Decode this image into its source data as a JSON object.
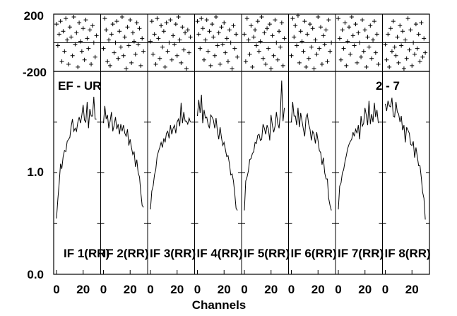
{
  "chart_data": {
    "type": "line",
    "xlabel": "Channels",
    "baseline_label": "EF - UR",
    "scan_label": "2 - 7",
    "phase_panel": {
      "type": "scatter",
      "y_tick_labels": [
        "200",
        "-200"
      ],
      "ylim": [
        -200,
        200
      ]
    },
    "amplitude_panel": {
      "type": "line",
      "y_tick_labels": [
        "0.0",
        "1.0"
      ],
      "ylim": [
        0.0,
        2.0
      ]
    },
    "x_tick_labels": [
      "0",
      "20"
    ],
    "xlim": [
      0,
      31
    ],
    "subbands": [
      {
        "label": "IF 1(RR)",
        "amplitudes": [
          0.55,
          0.74,
          0.9,
          1.09,
          1.04,
          1.16,
          1.22,
          1.21,
          1.31,
          1.33,
          1.35,
          1.46,
          1.53,
          1.41,
          1.44,
          1.41,
          1.5,
          1.55,
          1.49,
          1.57,
          1.67,
          1.52,
          1.5,
          1.7,
          1.44,
          1.63,
          1.56,
          1.56,
          1.75,
          1.53,
          1.53
        ],
        "phases": [
          130,
          -20,
          60,
          150,
          -130,
          80,
          -60,
          170,
          20,
          -150,
          110,
          40,
          -90,
          180,
          -10,
          70,
          -170,
          140,
          10,
          -60,
          100,
          -120,
          160,
          30,
          -40,
          90,
          -150,
          120,
          0,
          -100,
          50
        ]
      },
      {
        "label": "IF 2(RR)",
        "amplitudes": [
          1.49,
          1.66,
          1.53,
          1.57,
          1.44,
          1.51,
          1.6,
          1.41,
          1.47,
          1.55,
          1.43,
          1.48,
          1.38,
          1.48,
          1.41,
          1.47,
          1.39,
          1.36,
          1.43,
          1.27,
          1.33,
          1.25,
          1.18,
          1.21,
          1.06,
          1.13,
          1.0,
          0.96,
          0.81,
          0.68,
          0.66
        ],
        "phases": [
          -40,
          170,
          90,
          -130,
          20,
          -160,
          60,
          130,
          -70,
          0,
          150,
          -110,
          80,
          -30,
          180,
          -90,
          40,
          -180,
          110,
          -20,
          160,
          -140,
          70,
          10,
          -80,
          140,
          -10,
          100,
          -160,
          30,
          -60
        ]
      },
      {
        "label": "IF 3(RR)",
        "amplitudes": [
          0.64,
          0.82,
          0.87,
          0.98,
          1.03,
          1.16,
          1.21,
          1.25,
          1.3,
          1.25,
          1.34,
          1.3,
          1.39,
          1.41,
          1.34,
          1.47,
          1.38,
          1.44,
          1.47,
          1.39,
          1.5,
          1.53,
          1.46,
          1.69,
          1.49,
          1.6,
          1.51,
          1.51,
          1.48,
          1.54,
          1.5
        ],
        "phases": [
          10,
          150,
          -80,
          60,
          -150,
          170,
          30,
          -110,
          120,
          -30,
          80,
          -170,
          140,
          -60,
          0,
          160,
          -120,
          50,
          -10,
          130,
          -90,
          180,
          20,
          -140,
          110,
          -50,
          70,
          -180,
          90,
          -70,
          40
        ]
      },
      {
        "label": "IF 4(RR)",
        "amplitudes": [
          1.56,
          1.72,
          1.59,
          1.77,
          1.49,
          1.62,
          1.54,
          1.55,
          1.48,
          1.44,
          1.57,
          1.55,
          1.52,
          1.44,
          1.54,
          1.41,
          1.33,
          1.45,
          1.35,
          1.27,
          1.3,
          1.23,
          1.16,
          1.17,
          1.09,
          0.98,
          0.99,
          0.92,
          0.8,
          0.65,
          0.63
        ],
        "phases": [
          150,
          60,
          -40,
          170,
          100,
          -120,
          20,
          160,
          -60,
          80,
          -160,
          130,
          40,
          -90,
          180,
          -20,
          70,
          -150,
          110,
          -10,
          140,
          -70,
          30,
          -130,
          90,
          0,
          -180,
          120,
          -40,
          60,
          -100
        ]
      },
      {
        "label": "IF 5(RR)",
        "amplitudes": [
          0.63,
          0.92,
          0.96,
          1.02,
          1.13,
          1.14,
          1.19,
          1.21,
          1.3,
          1.29,
          1.37,
          1.38,
          1.32,
          1.33,
          1.48,
          1.44,
          1.38,
          1.47,
          1.43,
          1.32,
          1.57,
          1.47,
          1.4,
          1.46,
          1.6,
          1.49,
          1.44,
          1.6,
          1.91,
          1.51,
          1.64
        ],
        "phases": [
          60,
          -130,
          170,
          20,
          -80,
          120,
          -170,
          40,
          90,
          -20,
          150,
          -60,
          10,
          180,
          -110,
          70,
          -150,
          100,
          -40,
          130,
          -180,
          50,
          -90,
          160,
          0,
          -120,
          80,
          -30,
          140,
          -160,
          30
        ]
      },
      {
        "label": "IF 6(RR)",
        "amplitudes": [
          1.5,
          1.7,
          1.56,
          1.56,
          1.47,
          1.64,
          1.45,
          1.59,
          1.51,
          1.43,
          1.36,
          1.55,
          1.58,
          1.48,
          1.43,
          1.32,
          1.41,
          1.38,
          1.29,
          1.4,
          1.32,
          1.22,
          1.2,
          1.08,
          1.15,
          1.0,
          0.94,
          0.94,
          0.75,
          0.68,
          0.63
        ],
        "phases": [
          -90,
          170,
          40,
          120,
          -20,
          190,
          -140,
          80,
          10,
          -60,
          150,
          -170,
          60,
          -110,
          130,
          -30,
          100,
          -180,
          20,
          -80,
          180,
          -40,
          110,
          -150,
          50,
          -10,
          90,
          -130,
          160,
          -60,
          0
        ]
      },
      {
        "label": "IF 7(RR)",
        "amplitudes": [
          0.64,
          0.87,
          0.9,
          1.0,
          1.03,
          1.11,
          1.17,
          1.24,
          1.28,
          1.31,
          1.33,
          1.4,
          1.36,
          1.43,
          1.39,
          1.47,
          1.33,
          1.56,
          1.46,
          1.49,
          1.64,
          1.57,
          1.47,
          1.71,
          1.48,
          1.58,
          1.5,
          1.69,
          1.55,
          1.62,
          1.49
        ],
        "phases": [
          170,
          30,
          -120,
          90,
          -40,
          140,
          -160,
          10,
          110,
          -80,
          180,
          50,
          -20,
          130,
          -140,
          70,
          0,
          -100,
          160,
          -60,
          90,
          -170,
          40,
          -30,
          120,
          -110,
          20,
          150,
          -70,
          60,
          -150
        ]
      },
      {
        "label": "IF 8(RR)",
        "amplitudes": [
          1.68,
          1.61,
          1.71,
          1.66,
          1.65,
          1.74,
          1.56,
          1.55,
          1.7,
          1.6,
          1.58,
          1.5,
          1.56,
          1.42,
          1.47,
          1.3,
          1.45,
          1.42,
          1.39,
          1.28,
          1.27,
          1.31,
          1.15,
          1.25,
          1.16,
          1.07,
          1.07,
          0.95,
          0.81,
          0.75,
          0.54
        ],
        "phases": [
          -10,
          -120,
          60,
          -170,
          100,
          -60,
          150,
          -30,
          -90,
          40,
          -140,
          120,
          -20,
          80,
          -180,
          20,
          -110,
          170,
          -50,
          90,
          -160,
          0,
          -80,
          130,
          -40,
          60,
          -130,
          140,
          -100,
          30,
          -70
        ]
      }
    ]
  }
}
